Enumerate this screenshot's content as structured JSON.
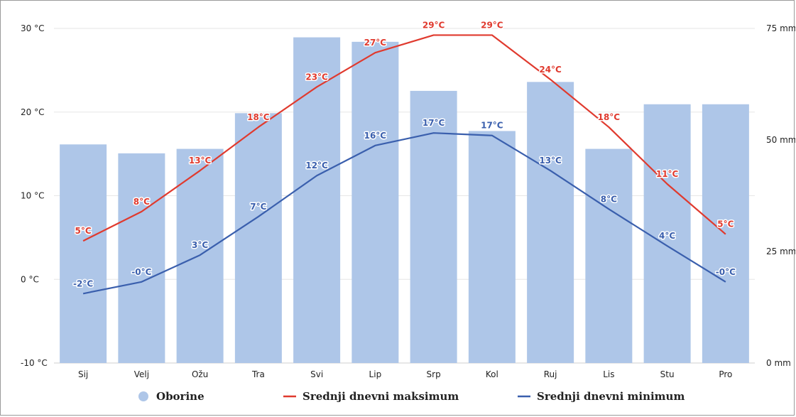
{
  "chart_data": {
    "type": "bar",
    "categories": [
      "Sij",
      "Velj",
      "Ožu",
      "Tra",
      "Svi",
      "Lip",
      "Srp",
      "Kol",
      "Ruj",
      "Lis",
      "Stu",
      "Pro"
    ],
    "series": [
      {
        "name": "Oborine",
        "type": "bar",
        "axis": "right",
        "color": "#aec6e8",
        "values": [
          49,
          47,
          48,
          56,
          73,
          72,
          61,
          52,
          63,
          48,
          58,
          58
        ]
      },
      {
        "name": "Srednji dnevni maksimum",
        "type": "line",
        "axis": "left",
        "color": "#e03a2e",
        "values": [
          4.6,
          8.1,
          13.0,
          18.2,
          23.0,
          27.1,
          29.2,
          29.2,
          23.9,
          18.2,
          11.4,
          5.4
        ],
        "labels": [
          "5°C",
          "8°C",
          "13°C",
          "18°C",
          "23°C",
          "27°C",
          "29°C",
          "29°C",
          "24°C",
          "18°C",
          "11°C",
          "5°C"
        ]
      },
      {
        "name": "Srednji dnevni minimum",
        "type": "line",
        "axis": "left",
        "color": "#3a5fad",
        "values": [
          -1.7,
          -0.3,
          2.9,
          7.5,
          12.4,
          16.0,
          17.5,
          17.2,
          13.0,
          8.4,
          4.0,
          -0.3
        ],
        "labels": [
          "-2°C",
          "-0°C",
          "3°C",
          "7°C",
          "12°C",
          "16°C",
          "17°C",
          "17°C",
          "13°C",
          "8°C",
          "4°C",
          "-0°C"
        ]
      }
    ],
    "y_left": {
      "range": [
        -10,
        30
      ],
      "ticks": [
        30,
        20,
        10,
        0,
        -10
      ],
      "tick_labels": [
        "30 °C",
        "20 °C",
        "10 °C",
        "0 °C",
        "-10 °C"
      ]
    },
    "y_right": {
      "range": [
        0,
        75
      ],
      "ticks": [
        75,
        50,
        25,
        0
      ],
      "tick_labels": [
        "75 mm",
        "50 mm",
        "25 mm",
        "0 mm"
      ]
    },
    "grid": true,
    "legend_placement": "bottom-center",
    "legend": [
      {
        "label": "Oborine",
        "marker": "circle",
        "color": "#aec6e8"
      },
      {
        "label": "Srednji dnevni maksimum",
        "marker": "line",
        "color": "#e03a2e"
      },
      {
        "label": "Srednji dnevni minimum",
        "marker": "line",
        "color": "#3a5fad"
      }
    ]
  }
}
